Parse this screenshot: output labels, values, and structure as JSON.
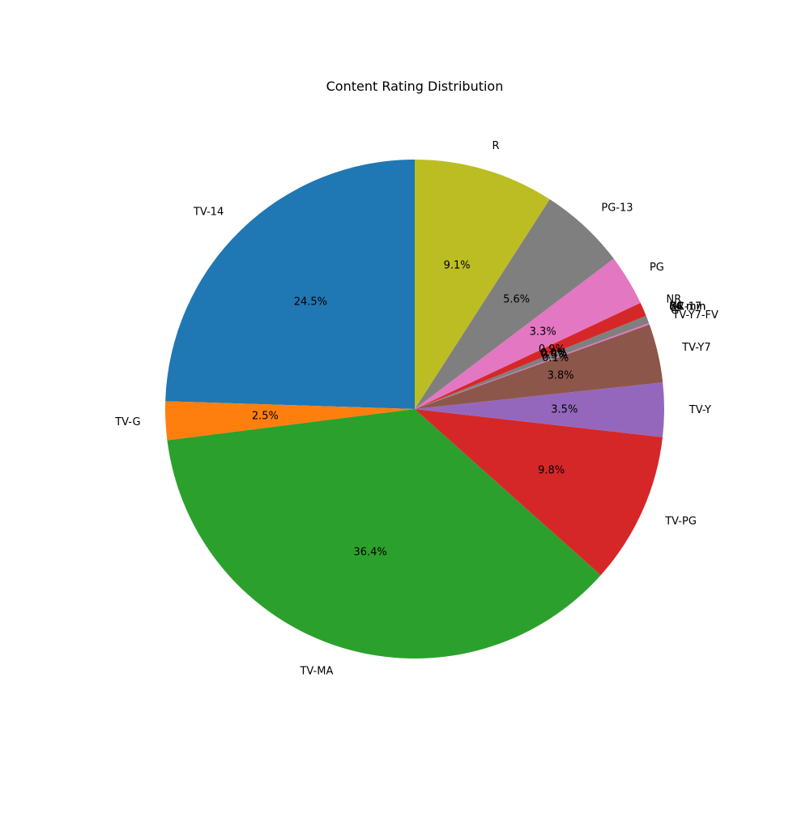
{
  "chart_data": {
    "type": "pie",
    "title": "Content Rating Distribution",
    "start_angle_deg": 90,
    "direction": "counterclockwise",
    "pct_format": "{v}%",
    "slices": [
      {
        "label": "TV-14",
        "value": 24.5,
        "pct_text": "24.5%",
        "color": "#1f77b4"
      },
      {
        "label": "TV-G",
        "value": 2.5,
        "pct_text": "2.5%",
        "color": "#ff7f0e"
      },
      {
        "label": "TV-MA",
        "value": 36.4,
        "pct_text": "36.4%",
        "color": "#2ca02c"
      },
      {
        "label": "TV-PG",
        "value": 9.8,
        "pct_text": "9.8%",
        "color": "#d62728"
      },
      {
        "label": "TV-Y",
        "value": 3.5,
        "pct_text": "3.5%",
        "color": "#9467bd"
      },
      {
        "label": "TV-Y7",
        "value": 3.8,
        "pct_text": "3.8%",
        "color": "#8c564b"
      },
      {
        "label": "TV-Y7-FV",
        "value": 0.1,
        "pct_text": "0.1%",
        "color": "#e377c2"
      },
      {
        "label": "G",
        "value": 0.5,
        "pct_text": "0.5%",
        "color": "#7f7f7f"
      },
      {
        "label": "66 min",
        "value": 0.0,
        "pct_text": "0.0%",
        "color": "#bcbd22"
      },
      {
        "label": "74 min",
        "value": 0.0,
        "pct_text": "0.0%",
        "color": "#17becf"
      },
      {
        "label": "84 min",
        "value": 0.0,
        "pct_text": "0.0%",
        "color": "#1f77b4"
      },
      {
        "label": "UR",
        "value": 0.0,
        "pct_text": "0.0%",
        "color": "#ff7f0e"
      },
      {
        "label": "NC-17",
        "value": 0.0,
        "pct_text": "0.0%",
        "color": "#2ca02c"
      },
      {
        "label": "NR",
        "value": 0.9,
        "pct_text": "0.9%",
        "color": "#d62728"
      },
      {
        "label": "PG",
        "value": 3.3,
        "pct_text": "3.3%",
        "color": "#e377c2"
      },
      {
        "label": "PG-13",
        "value": 5.6,
        "pct_text": "5.6%",
        "color": "#7f7f7f"
      },
      {
        "label": "R",
        "value": 9.1,
        "pct_text": "9.1%",
        "color": "#bcbd22"
      },
      {
        "label": "",
        "value": 0.0,
        "pct_text": "",
        "color": "#17becf"
      }
    ]
  }
}
